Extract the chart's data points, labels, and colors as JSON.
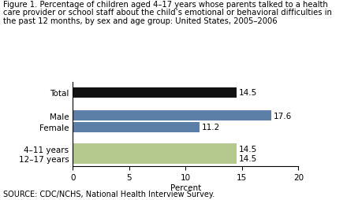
{
  "title_line1": "Figure 1. Percentage of children aged 4–17 years whose parents talked to a health",
  "title_line2": "care provider or school staff about the child’s emotional or behavioral difficulties in",
  "title_line3": "the past 12 months, by sex and age group: United States, 2005–2006",
  "categories": [
    "Total",
    "Male",
    "Female",
    "4–11 years",
    "12–17 years"
  ],
  "values": [
    14.5,
    17.6,
    11.2,
    14.5,
    14.5
  ],
  "bar_colors": [
    "#111111",
    "#5b7fa6",
    "#5b7fa6",
    "#b5c98e",
    "#b5c98e"
  ],
  "xlabel": "Percent",
  "xlim": [
    0,
    20
  ],
  "xticks": [
    0,
    5,
    10,
    15,
    20
  ],
  "source": "SOURCE: CDC/NCHS, National Health Interview Survey.",
  "title_fontsize": 7.2,
  "label_fontsize": 7.5,
  "tick_fontsize": 7.5,
  "source_fontsize": 7.0,
  "value_fontsize": 7.5,
  "y_positions": [
    4,
    2.6,
    1.9,
    0.6,
    0.0
  ],
  "bar_height": 0.62
}
